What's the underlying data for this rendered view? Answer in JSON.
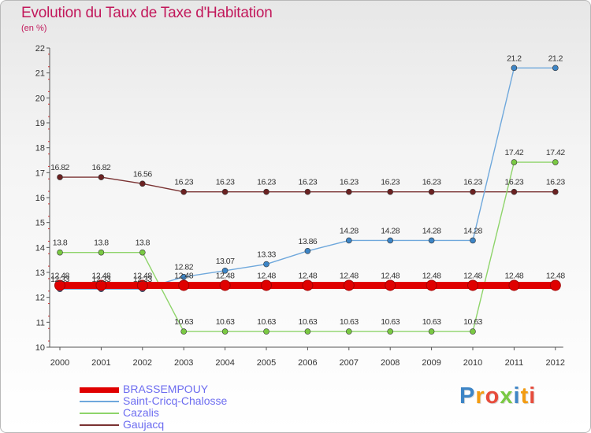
{
  "title": "Evolution du Taux de Taxe d'Habitation",
  "subtitle": "(en %)",
  "logo": "Proxiti",
  "chart_data": {
    "type": "line",
    "x": [
      "2000",
      "2001",
      "2002",
      "2003",
      "2004",
      "2005",
      "2006",
      "2007",
      "2008",
      "2009",
      "2010",
      "2011",
      "2012"
    ],
    "ylim": [
      10,
      22
    ],
    "yticks": [
      10,
      11,
      12,
      13,
      14,
      15,
      16,
      17,
      18,
      19,
      20,
      21,
      22
    ],
    "grid": false,
    "legend_position": "bottom-left",
    "series": [
      {
        "name": "BRASSEMPOUY",
        "color": "#e00000",
        "values": [
          12.48,
          12.48,
          12.48,
          12.48,
          12.48,
          12.48,
          12.48,
          12.48,
          12.48,
          12.48,
          12.48,
          12.48,
          12.48
        ]
      },
      {
        "name": "Saint-Cricq-Chalosse",
        "color": "#6fa8dc",
        "marker": "#3d85c6",
        "values": [
          12.33,
          12.33,
          12.33,
          12.82,
          13.07,
          13.33,
          13.86,
          14.28,
          14.28,
          14.28,
          14.28,
          21.2,
          21.2
        ]
      },
      {
        "name": "Cazalis",
        "color": "#8ed46a",
        "marker": "#7ac943",
        "values": [
          13.8,
          13.8,
          13.8,
          10.63,
          10.63,
          10.63,
          10.63,
          10.63,
          10.63,
          10.63,
          10.63,
          17.42,
          17.42
        ]
      },
      {
        "name": "Gaujacq",
        "color": "#7a3232",
        "marker": "#6b2222",
        "values": [
          16.82,
          16.82,
          16.56,
          16.23,
          16.23,
          16.23,
          16.23,
          16.23,
          16.23,
          16.23,
          16.23,
          16.23,
          16.23
        ]
      }
    ],
    "data_labels": [
      [
        "12.48",
        "12.48",
        "12.48",
        "12.48",
        "12.48",
        "12.48",
        "12.48",
        "12.48",
        "12.48",
        "12.48",
        "12.48",
        "12.48",
        "12.48"
      ],
      [
        "12.33",
        "12.33",
        "12.33",
        "12.82",
        "13.07",
        "13.33",
        "13.86",
        "14.28",
        "14.28",
        "14.28",
        "14.28",
        "21.2",
        "21.2"
      ],
      [
        "13.8",
        "13.8",
        "13.8",
        "10.63",
        "10.63",
        "10.63",
        "10.63",
        "10.63",
        "10.63",
        "10.63",
        "10.63",
        "17.42",
        "17.42"
      ],
      [
        "16.82",
        "16.82",
        "16.56",
        "16.23",
        "16.23",
        "16.23",
        "16.23",
        "16.23",
        "16.23",
        "16.23",
        "16.23",
        "16.23",
        "16.23"
      ]
    ]
  }
}
